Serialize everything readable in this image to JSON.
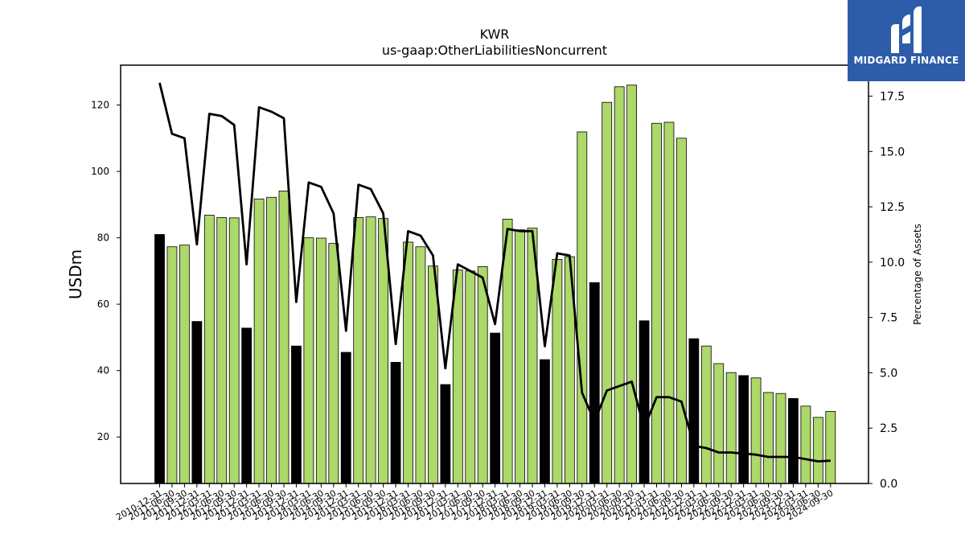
{
  "chart_data": {
    "type": "bar",
    "title": "KWR",
    "subtitle": "us-gaap:OtherLiabilitiesNoncurrent",
    "ylabel": "USDm",
    "y2label": "Percentage of Assets",
    "ylim": [
      6,
      132
    ],
    "y2lim": [
      0,
      18.9
    ],
    "yticks": [
      20,
      40,
      60,
      80,
      100,
      120
    ],
    "y2ticks": [
      "0.0",
      "2.5",
      "5.0",
      "7.5",
      "10.0",
      "12.5",
      "15.0",
      "17.5"
    ],
    "categories": [
      "2010-12-31",
      "2011-06-30",
      "2011-09-30",
      "2011-12-31",
      "2012-03-31",
      "2012-06-30",
      "2012-09-30",
      "2012-12-31",
      "2013-03-31",
      "2013-06-30",
      "2013-09-30",
      "2013-12-31",
      "2014-03-31",
      "2014-06-30",
      "2014-09-30",
      "2014-12-31",
      "2015-03-31",
      "2015-06-30",
      "2015-09-30",
      "2015-12-31",
      "2016-03-31",
      "2016-06-30",
      "2016-09-30",
      "2016-12-31",
      "2017-03-31",
      "2017-06-30",
      "2017-09-30",
      "2017-12-31",
      "2018-03-31",
      "2018-06-30",
      "2018-09-30",
      "2018-12-31",
      "2019-03-31",
      "2019-06-30",
      "2019-09-30",
      "2019-12-31",
      "2020-03-31",
      "2020-06-30",
      "2020-09-30",
      "2020-12-31",
      "2021-03-31",
      "2021-06-30",
      "2021-09-30",
      "2021-12-31",
      "2022-03-31",
      "2022-06-30",
      "2022-09-30",
      "2022-12-31",
      "2023-03-31",
      "2023-06-30",
      "2023-09-30",
      "2023-12-31",
      "2024-03-31",
      "2024-06-30",
      "2024-09-30"
    ],
    "series": [
      {
        "kind": "bar",
        "values": [
          81,
          77.3,
          77.8,
          54.8,
          86.8,
          86.1,
          86,
          52.8,
          91.7,
          92.2,
          94.1,
          47.4,
          80,
          79.9,
          78.3,
          45.5,
          86.1,
          86.3,
          85.8,
          42.5,
          78.7,
          77.3,
          71.5,
          35.8,
          70.3,
          70,
          71.3,
          51.3,
          85.6,
          82.4,
          82.9,
          43.3,
          73.5,
          74.3,
          111.9,
          66.5,
          120.8,
          125.5,
          126,
          55,
          114.5,
          114.8,
          110,
          49.6,
          47.4,
          42.1,
          39.4,
          38.5,
          37.8,
          33.4,
          33.1,
          31.6,
          29.3,
          25.9,
          27.7
        ],
        "highlight": [
          true,
          false,
          false,
          true,
          false,
          false,
          false,
          true,
          false,
          false,
          false,
          true,
          false,
          false,
          false,
          true,
          false,
          false,
          false,
          true,
          false,
          false,
          false,
          true,
          false,
          false,
          false,
          true,
          false,
          false,
          false,
          true,
          false,
          false,
          false,
          true,
          false,
          false,
          false,
          true,
          false,
          false,
          false,
          true,
          false,
          false,
          false,
          true,
          false,
          false,
          false,
          true,
          false,
          false,
          false
        ]
      },
      {
        "kind": "line",
        "axis": "right",
        "values": [
          18.1,
          15.8,
          15.6,
          10.8,
          16.7,
          16.6,
          16.2,
          9.9,
          17,
          16.8,
          16.5,
          8.2,
          13.6,
          13.4,
          12.2,
          6.9,
          13.5,
          13.3,
          12.2,
          6.3,
          11.4,
          11.2,
          10.3,
          5.2,
          9.9,
          9.6,
          9.3,
          7.2,
          11.5,
          11.4,
          11.4,
          6.2,
          10.4,
          10.3,
          4.1,
          2.8,
          4.2,
          4.4,
          4.6,
          2.5,
          3.9,
          3.9,
          3.7,
          1.7,
          1.6,
          1.4,
          1.4,
          1.35,
          1.3,
          1.2,
          1.2,
          1.2,
          1.1,
          1,
          1.03
        ]
      }
    ],
    "colors": {
      "bar": "#add86a",
      "bar_highlight": "#000000",
      "bar_edge": "#000000",
      "line": "#000000"
    },
    "grid": false,
    "legend": "none"
  },
  "logo": {
    "text": "MIDGARD FINANCE",
    "background": "#2d5ca9"
  }
}
